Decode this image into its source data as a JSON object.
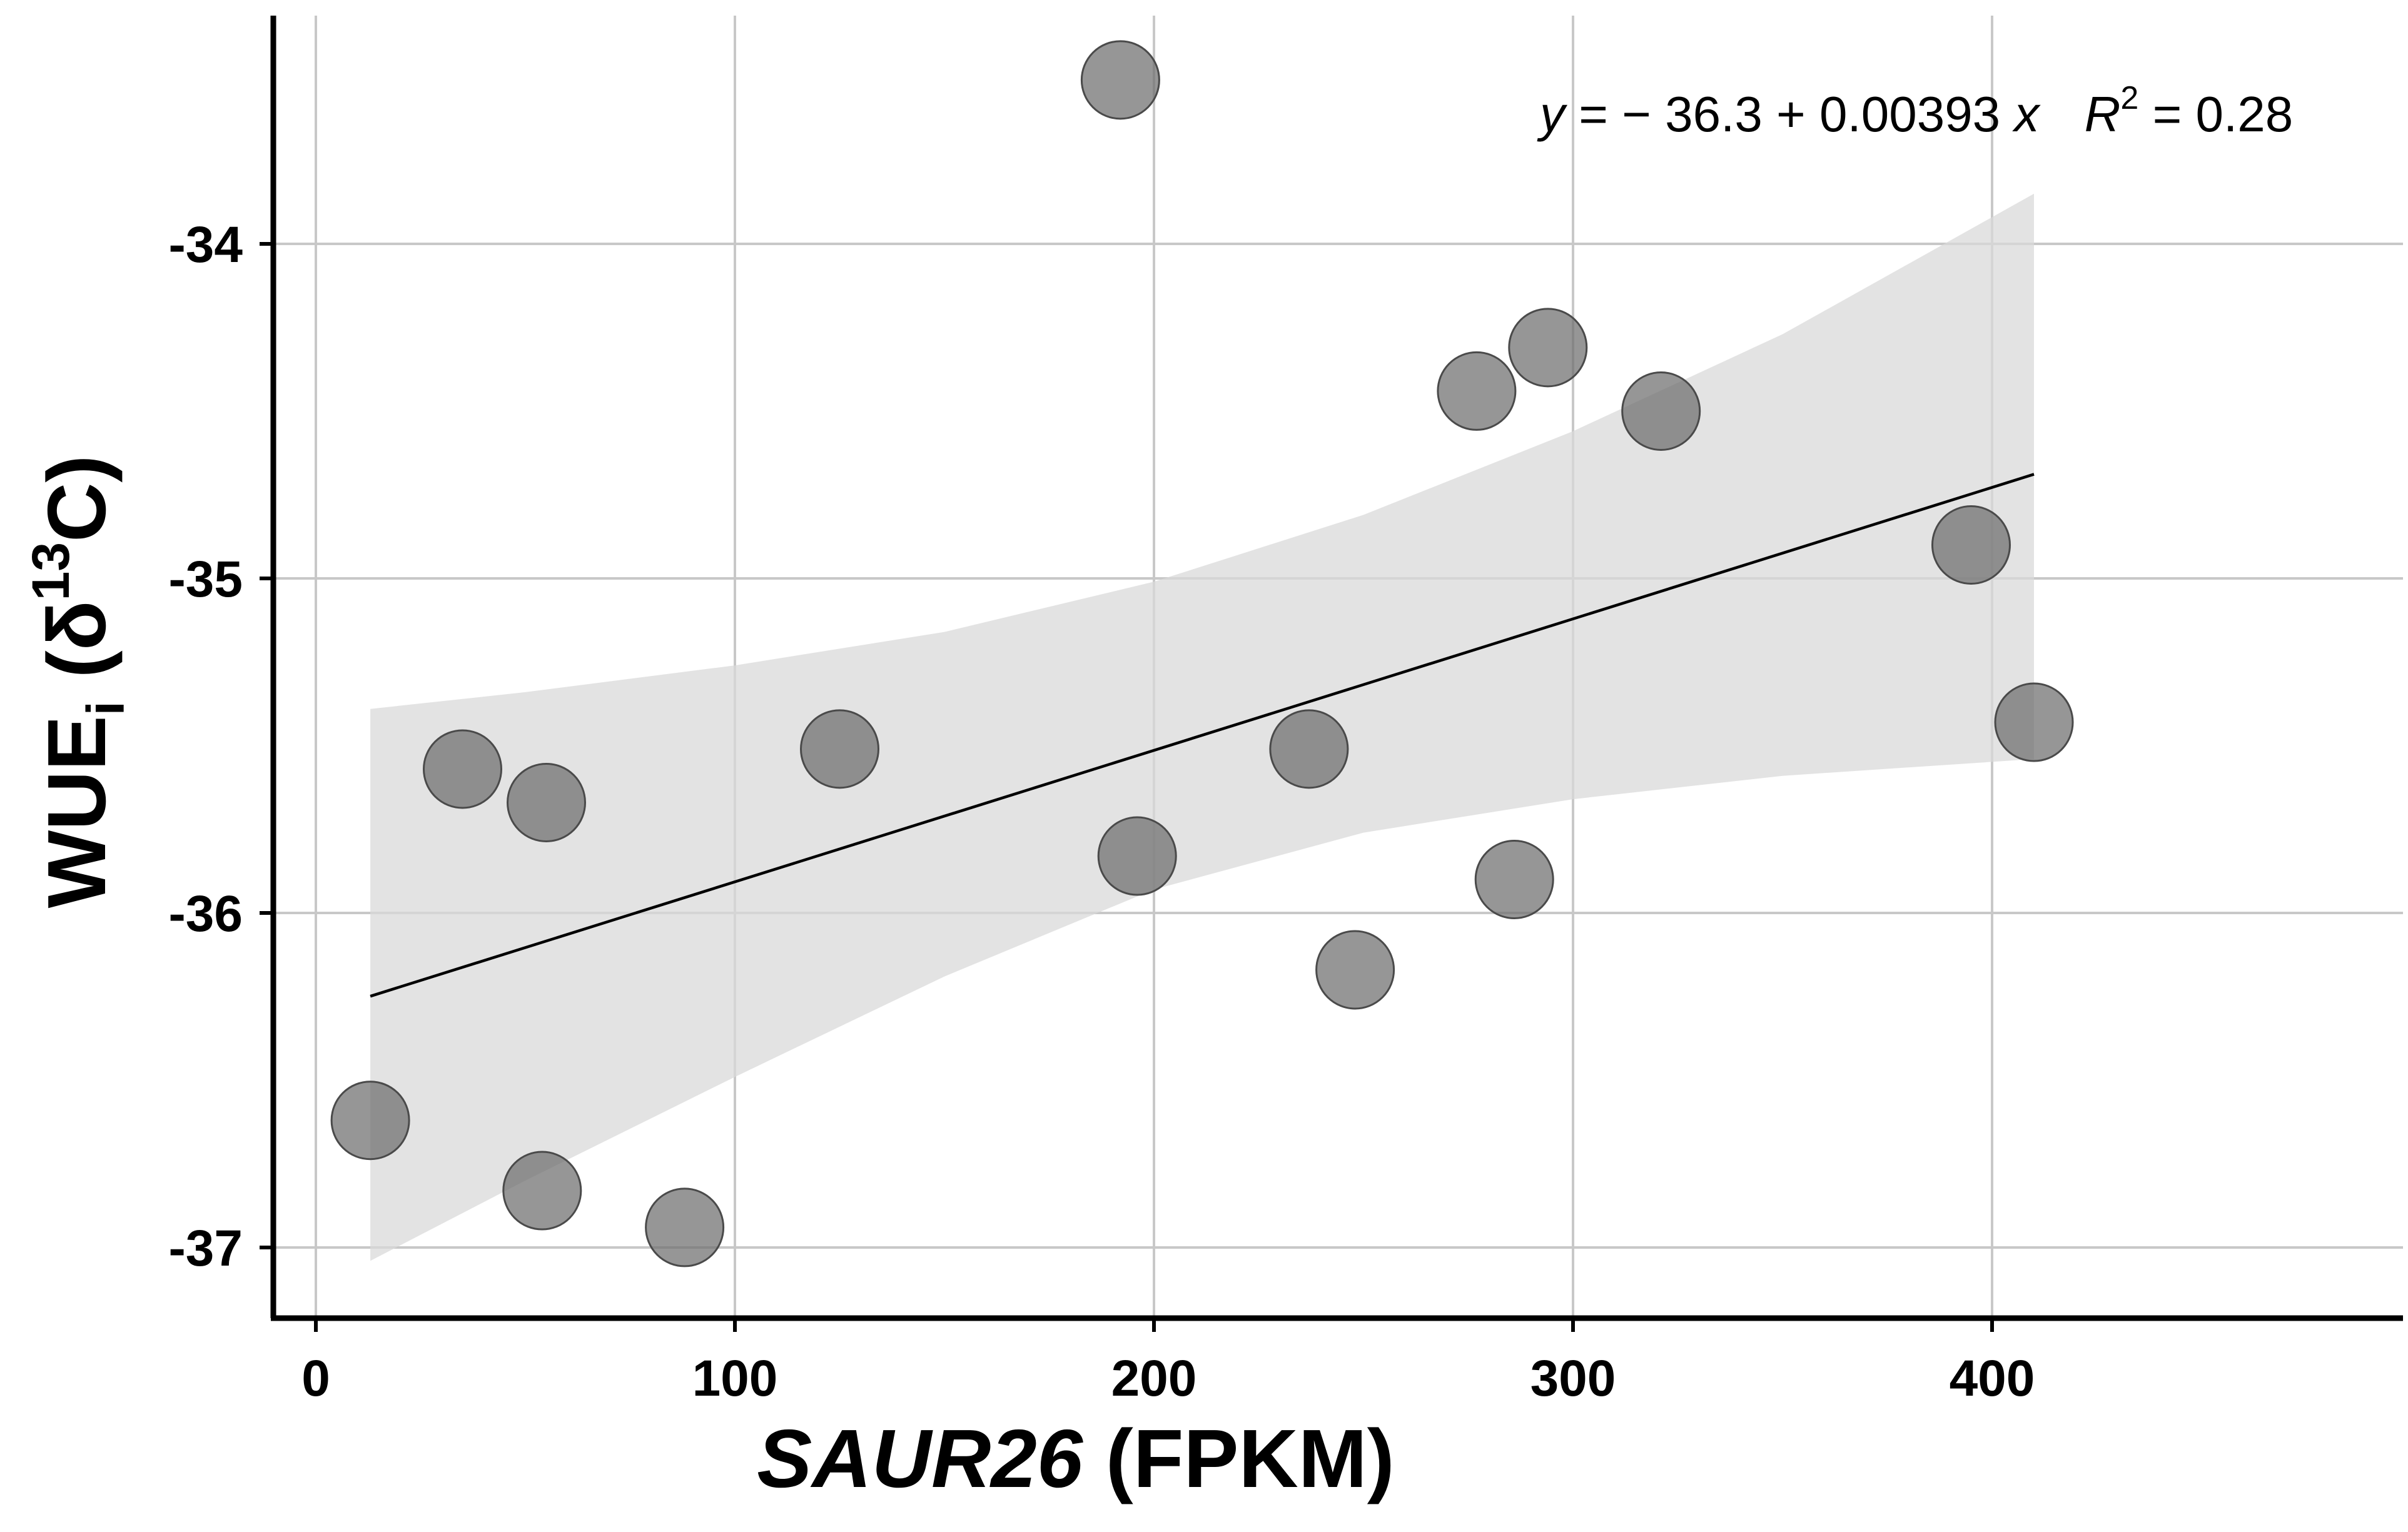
{
  "chart_data": {
    "type": "scatter",
    "title": "",
    "xlabel": {
      "gene": "SAUR26",
      "unit": "(FPKM)"
    },
    "ylabel": {
      "prefix": "WUE",
      "subscript": "i",
      "open": " (δ",
      "superscript": "13",
      "close": "C)"
    },
    "xlim": [
      -10,
      495
    ],
    "ylim": [
      -37.2,
      -33.3
    ],
    "x_ticks": [
      0,
      100,
      200,
      300,
      400
    ],
    "y_ticks": [
      -37,
      -36,
      -35,
      -34
    ],
    "x_tick_labels": [
      "0",
      "100",
      "200",
      "300",
      "400"
    ],
    "y_tick_labels": [
      "-37",
      "-36",
      "-35",
      "-34"
    ],
    "grid": true,
    "points": [
      {
        "x": 13,
        "y": -36.62
      },
      {
        "x": 35,
        "y": -35.57
      },
      {
        "x": 54,
        "y": -36.83
      },
      {
        "x": 55,
        "y": -35.67
      },
      {
        "x": 88,
        "y": -36.94
      },
      {
        "x": 125,
        "y": -35.51
      },
      {
        "x": 192,
        "y": -33.51
      },
      {
        "x": 196,
        "y": -35.83
      },
      {
        "x": 237,
        "y": -35.51
      },
      {
        "x": 248,
        "y": -36.17
      },
      {
        "x": 277,
        "y": -34.44
      },
      {
        "x": 286,
        "y": -35.9
      },
      {
        "x": 294,
        "y": -34.31
      },
      {
        "x": 321,
        "y": -34.5
      },
      {
        "x": 395,
        "y": -34.9
      },
      {
        "x": 410,
        "y": -35.43
      }
    ],
    "fit_line": {
      "intercept": -36.3,
      "slope": 0.00393,
      "x_range": [
        13,
        410
      ]
    },
    "confidence_band": {
      "x": [
        13,
        50,
        100,
        150,
        200,
        250,
        300,
        350,
        410
      ],
      "upper": [
        -35.39,
        -35.34,
        -35.26,
        -35.16,
        -35.01,
        -34.81,
        -34.56,
        -34.27,
        -33.85
      ],
      "lower": [
        -37.04,
        -36.8,
        -36.49,
        -36.19,
        -35.93,
        -35.76,
        -35.66,
        -35.59,
        -35.54
      ]
    },
    "equation": {
      "y_var": "y",
      "eq_body": " = − 36.3 + 0.00393 ",
      "x_var": "x",
      "r_var": "R",
      "r_sup": "2",
      "r_value": " = 0.28"
    },
    "colors": {
      "point_fill": "#6e6e6e",
      "point_stroke": "#4a4a4a",
      "band": "#d9d9d9",
      "grid": "#c8c8c8",
      "line": "#000000"
    }
  }
}
